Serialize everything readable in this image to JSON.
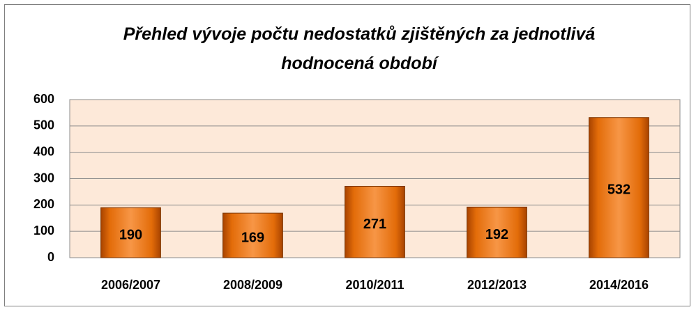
{
  "chart_data": {
    "type": "bar",
    "title": "Přehled vývoje počtu nedostatků zjištěných za jednotlivá hodnocená období",
    "categories": [
      "2006/2007",
      "2008/2009",
      "2010/2011",
      "2012/2013",
      "2014/2016"
    ],
    "values": [
      190,
      169,
      271,
      192,
      532
    ],
    "color": "#e36c09",
    "ylim": [
      0,
      600
    ],
    "yticks": [
      0,
      100,
      200,
      300,
      400,
      500,
      600
    ],
    "grid": true
  }
}
